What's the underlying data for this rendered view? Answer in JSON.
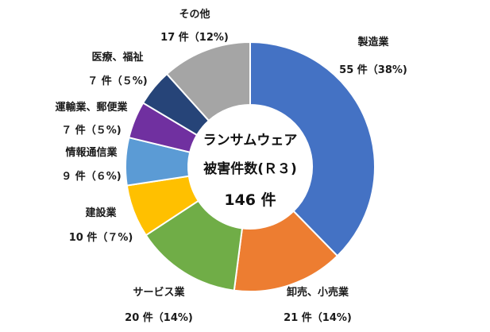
{
  "chart_data": {
    "type": "pie",
    "style": "donut",
    "center_text": [
      "ランサムウェア",
      "被害件数(Ｒ３)",
      "146 件"
    ],
    "unit": "件",
    "slices": [
      {
        "name": "製造業",
        "value": 55,
        "label": "55 件（38%)",
        "color": "#4472C4"
      },
      {
        "name": "卸売、小売業",
        "value": 21,
        "label": "21 件（14%)",
        "color": "#ED7D31"
      },
      {
        "name": "サービス業",
        "value": 20,
        "label": "20 件（14%)",
        "color": "#70AD47"
      },
      {
        "name": "建設業",
        "value": 10,
        "label": "10 件（７%)",
        "color": "#FFC000"
      },
      {
        "name": "情報通信業",
        "value": 9,
        "label": "９ 件（６%)",
        "color": "#5B9BD5"
      },
      {
        "name": "運輸業、郵便業",
        "value": 7,
        "label": "７ 件（５%)",
        "color": "#7030A0"
      },
      {
        "name": "医療、福祉",
        "value": 7,
        "label": "７ 件（５%)",
        "color": "#264478"
      },
      {
        "name": "その他",
        "value": 17,
        "label": "17 件（12%)",
        "color": "#A5A5A5"
      }
    ]
  }
}
